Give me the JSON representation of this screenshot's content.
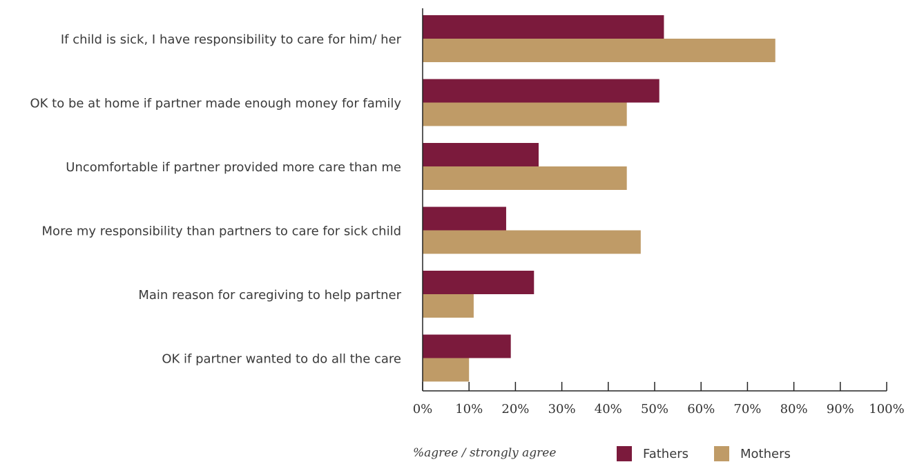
{
  "chart_data": {
    "type": "bar",
    "orientation": "horizontal",
    "categories": [
      "If child is sick, I have responsibility to care for him/ her",
      "OK to be at home if partner made enough money for family",
      "Uncomfortable if partner provided more care than me",
      "More my responsibility than partners to care for sick child",
      "Main reason for caregiving to help partner",
      "OK if partner wanted to do all the care"
    ],
    "series": [
      {
        "name": "Fathers",
        "color": "#7b1a3c",
        "values": [
          52,
          51,
          25,
          18,
          24,
          19
        ]
      },
      {
        "name": "Mothers",
        "color": "#bf9b67",
        "values": [
          76,
          44,
          44,
          47,
          11,
          10
        ]
      }
    ],
    "xlim": [
      0,
      100
    ],
    "xticks": [
      "0%",
      "10%",
      "20%",
      "30%",
      "40%",
      "50%",
      "60%",
      "70%",
      "80%",
      "90%",
      "100%"
    ],
    "xlabel": "%agree / strongly agree",
    "legend": {
      "position": "bottom",
      "items": [
        "Fathers",
        "Mothers"
      ]
    },
    "grid": false
  }
}
